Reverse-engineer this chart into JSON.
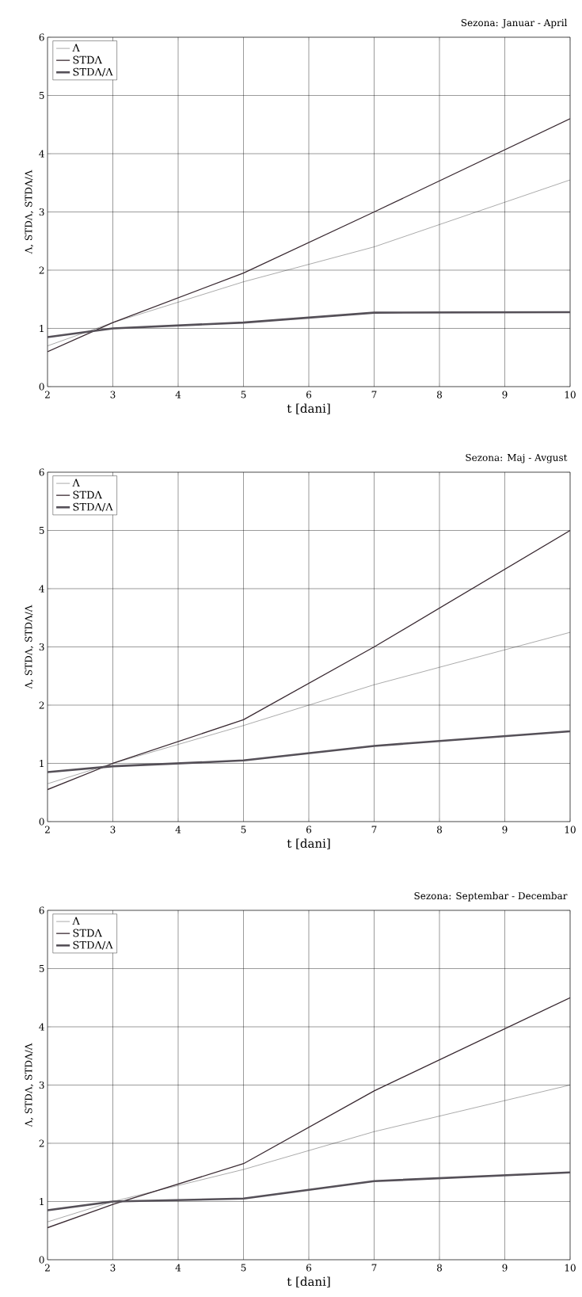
{
  "chart_data": [
    {
      "type": "line",
      "title": "Sezona: Januar - April",
      "xlabel": "t [dani]",
      "ylabel": "Λ, STDΛ, STDΛ/Λ",
      "x": [
        2,
        3,
        5,
        7,
        10
      ],
      "series": [
        {
          "name": "Λ",
          "color": "#2a2a2a",
          "values": [
            0.7,
            1.1,
            1.8,
            2.4,
            3.55
          ]
        },
        {
          "name": "STDΛ",
          "color": "#3a2a32",
          "values": [
            0.6,
            1.1,
            1.95,
            3.0,
            4.6
          ]
        },
        {
          "name": "STDΛ/Λ",
          "color": "#555058",
          "values": [
            0.85,
            1.0,
            1.1,
            1.27,
            1.28
          ]
        }
      ],
      "xlim": [
        2,
        10
      ],
      "ylim": [
        0,
        6
      ],
      "xticks": [
        2,
        3,
        4,
        5,
        6,
        7,
        8,
        9,
        10
      ],
      "yticks": [
        0,
        1,
        2,
        3,
        4,
        5,
        6
      ],
      "grid": true,
      "legend": "top left"
    },
    {
      "type": "line",
      "title": "Sezona: Maj - Avgust",
      "xlabel": "t [dani]",
      "ylabel": "Λ, STDΛ, STDΛ/Λ",
      "x": [
        2,
        3,
        5,
        7,
        10
      ],
      "series": [
        {
          "name": "Λ",
          "color": "#2a2a2a",
          "values": [
            0.65,
            1.0,
            1.65,
            2.35,
            3.25
          ]
        },
        {
          "name": "STDΛ",
          "color": "#3a2a32",
          "values": [
            0.55,
            1.0,
            1.75,
            3.0,
            5.0
          ]
        },
        {
          "name": "STDΛ/Λ",
          "color": "#555058",
          "values": [
            0.85,
            0.95,
            1.05,
            1.3,
            1.55
          ]
        }
      ],
      "xlim": [
        2,
        10
      ],
      "ylim": [
        0,
        6
      ],
      "xticks": [
        2,
        3,
        4,
        5,
        6,
        7,
        8,
        9,
        10
      ],
      "yticks": [
        0,
        1,
        2,
        3,
        4,
        5,
        6
      ],
      "grid": true,
      "legend": "top left"
    },
    {
      "type": "line",
      "title": "Sezona: Septembar - Decembar",
      "xlabel": "t [dani]",
      "ylabel": "Λ, STDΛ, STDΛ/Λ",
      "x": [
        2,
        3,
        5,
        7,
        10
      ],
      "series": [
        {
          "name": "Λ",
          "color": "#2a2a2a",
          "values": [
            0.65,
            1.0,
            1.55,
            2.2,
            3.0
          ]
        },
        {
          "name": "STDΛ",
          "color": "#3a2a32",
          "values": [
            0.55,
            0.95,
            1.65,
            2.9,
            4.5
          ]
        },
        {
          "name": "STDΛ/Λ",
          "color": "#555058",
          "values": [
            0.85,
            1.0,
            1.05,
            1.35,
            1.5
          ]
        }
      ],
      "xlim": [
        2,
        10
      ],
      "ylim": [
        0,
        6
      ],
      "xticks": [
        2,
        3,
        4,
        5,
        6,
        7,
        8,
        9,
        10
      ],
      "yticks": [
        0,
        1,
        2,
        3,
        4,
        5,
        6
      ],
      "grid": true,
      "legend": "top left"
    }
  ]
}
